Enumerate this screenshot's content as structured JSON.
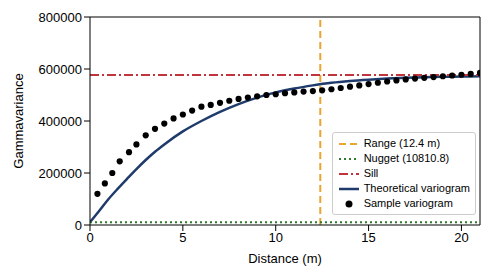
{
  "chart_data": {
    "type": "scatter",
    "x_label": "Distance (m)",
    "y_label": "Gammavariance",
    "xlim": [
      0,
      21
    ],
    "xticks": [
      0,
      5,
      10,
      15,
      20
    ],
    "ylim": [
      0,
      800000
    ],
    "yticks": [
      0,
      200000,
      400000,
      600000,
      800000
    ],
    "grid": false,
    "legend": "lower right",
    "reference_lines": [
      {
        "name": "Range (12.4 m)",
        "axis": "x",
        "value": 12.4,
        "color": "#e8a530",
        "line_style": "dashed"
      },
      {
        "name": "Nugget (10810.8)",
        "axis": "y",
        "value": 10810.8,
        "color": "#2d7a2d",
        "line_style": "dotted"
      },
      {
        "name": "Sill",
        "axis": "y",
        "value": 577000,
        "color": "#c1343c",
        "line_style": "dashdot"
      }
    ],
    "series": [
      {
        "name": "Theoretical variogram",
        "type": "line",
        "color": "#1f3b6b",
        "line_style": "solid",
        "x": [
          0,
          0.5,
          1,
          1.5,
          2,
          2.5,
          3,
          3.5,
          4,
          5,
          6,
          7,
          8,
          9,
          10,
          11,
          12,
          13,
          14,
          15,
          16,
          17,
          18,
          19,
          20,
          21
        ],
        "values": [
          10811,
          55000,
          100000,
          140000,
          178000,
          215000,
          250000,
          282000,
          310000,
          360000,
          400000,
          435000,
          465000,
          490000,
          510000,
          525000,
          537000,
          547000,
          554000,
          559000,
          563000,
          566000,
          568000,
          570000,
          571000,
          572000
        ]
      },
      {
        "name": "Sample variogram",
        "type": "scatter",
        "color": "#000000",
        "marker": "circle",
        "x": [
          0.4,
          0.8,
          1.2,
          1.6,
          2.1,
          2.5,
          3.0,
          3.5,
          4.0,
          4.5,
          5.0,
          5.5,
          6.0,
          6.5,
          7.0,
          7.5,
          8.0,
          8.5,
          9.0,
          9.5,
          10.0,
          10.5,
          11.0,
          11.5,
          12.0,
          12.5,
          13.0,
          13.5,
          14.0,
          14.5,
          15.0,
          15.5,
          16.0,
          16.5,
          17.0,
          17.5,
          18.0,
          18.5,
          19.0,
          19.5,
          20.0,
          20.5,
          21.0
        ],
        "values": [
          120000,
          160000,
          200000,
          245000,
          280000,
          310000,
          345000,
          370000,
          390000,
          410000,
          425000,
          440000,
          455000,
          462000,
          470000,
          478000,
          485000,
          490000,
          495000,
          500000,
          503000,
          507000,
          510000,
          513000,
          515000,
          518000,
          522000,
          527000,
          532000,
          537000,
          542000,
          547000,
          552000,
          556000,
          560000,
          563000,
          566000,
          569000,
          572000,
          575000,
          578000,
          581000,
          585000
        ]
      }
    ]
  }
}
